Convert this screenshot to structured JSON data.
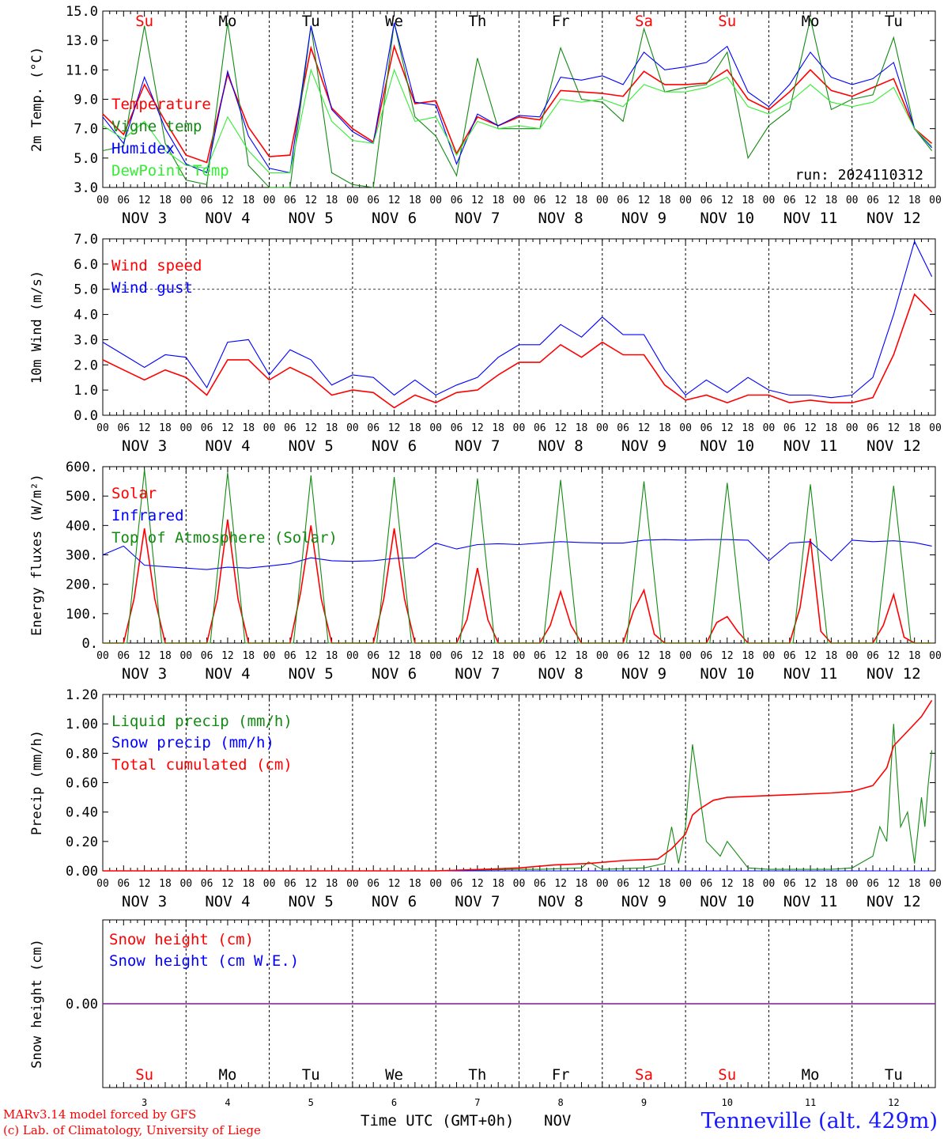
{
  "run_label": "run: 2024110312",
  "station": "Tenneville (alt. 429m)",
  "credit_line1": "MARv3.14 model forced by GFS",
  "credit_line2": "(c) Lab. of Climatology, University of Liege",
  "time_axis_label": "Time UTC (GMT+0h)",
  "month_label": "NOV",
  "day_numbers": [
    "3",
    "4",
    "5",
    "6",
    "7",
    "8",
    "9",
    "10",
    "11",
    "12"
  ],
  "weekdays": [
    "Su",
    "Mo",
    "Tu",
    "We",
    "Th",
    "Fr",
    "Sa",
    "Su",
    "Mo",
    "Tu"
  ],
  "weekday_colors": [
    "#ff0000",
    "#000000",
    "#000000",
    "#000000",
    "#000000",
    "#000000",
    "#ff0000",
    "#ff0000",
    "#000000",
    "#000000"
  ],
  "date_labels": [
    "NOV  3",
    "NOV  4",
    "NOV  5",
    "NOV  6",
    "NOV  7",
    "NOV  8",
    "NOV  9",
    "NOV 10",
    "NOV 11",
    "NOV 12"
  ],
  "hour_ticks": [
    "00",
    "06",
    "12",
    "18"
  ],
  "colors": {
    "red": "#ff0000",
    "green": "#138a13",
    "blue": "#0000ff",
    "lightgreen": "#33ee33",
    "purple": "#7a1a9a"
  },
  "chart_data": [
    {
      "type": "line",
      "ylabel": "2m Temp. (°C)",
      "ylim": [
        3.0,
        15.0
      ],
      "yticks": [
        "3.0",
        "5.0",
        "7.0",
        "9.0",
        "11.0",
        "13.0",
        "15.0"
      ],
      "x_unit": "hours since 2024-11-03 00 UTC",
      "series": [
        {
          "name": "Temperature",
          "color": "#ff0000",
          "x": [
            0,
            6,
            12,
            18,
            24,
            30,
            36,
            42,
            48,
            54,
            60,
            66,
            72,
            78,
            84,
            90,
            96,
            102,
            108,
            114,
            120,
            126,
            132,
            138,
            144,
            150,
            156,
            162,
            168,
            174,
            180,
            186,
            192,
            198,
            204,
            210,
            216,
            222,
            228,
            234,
            239
          ],
          "y": [
            8.0,
            6.6,
            10.0,
            7.5,
            5.2,
            4.7,
            10.7,
            7.1,
            5.1,
            5.2,
            12.5,
            8.4,
            7.0,
            6.1,
            12.6,
            8.7,
            8.9,
            5.3,
            7.8,
            7.2,
            7.8,
            7.6,
            9.6,
            9.5,
            9.4,
            9.2,
            10.9,
            10.0,
            10.0,
            10.1,
            11.0,
            9.0,
            8.3,
            9.5,
            11.0,
            9.6,
            9.2,
            9.8,
            10.4,
            7.0,
            6.0
          ]
        },
        {
          "name": "Vigne temp",
          "color": "#138a13",
          "x": [
            0,
            6,
            12,
            18,
            24,
            30,
            36,
            42,
            48,
            54,
            60,
            66,
            72,
            78,
            84,
            90,
            96,
            102,
            108,
            114,
            120,
            126,
            132,
            138,
            144,
            150,
            156,
            162,
            168,
            174,
            180,
            186,
            192,
            198,
            204,
            210,
            216,
            222,
            228,
            234,
            239
          ],
          "y": [
            5.5,
            5.8,
            14.0,
            6.0,
            3.5,
            3.2,
            14.2,
            4.5,
            2.8,
            2.8,
            14.0,
            4.0,
            3.2,
            3.0,
            14.2,
            7.8,
            6.5,
            3.8,
            11.8,
            7.0,
            7.0,
            7.0,
            12.5,
            9.0,
            8.8,
            7.5,
            13.8,
            9.5,
            9.8,
            10.0,
            12.2,
            5.0,
            7.2,
            8.3,
            14.5,
            8.3,
            9.0,
            9.3,
            13.2,
            7.0,
            5.5
          ]
        },
        {
          "name": "Humidex",
          "color": "#0000ff",
          "x": [
            0,
            6,
            12,
            18,
            24,
            30,
            36,
            42,
            48,
            54,
            60,
            66,
            72,
            78,
            84,
            90,
            96,
            102,
            108,
            114,
            120,
            126,
            132,
            138,
            144,
            150,
            156,
            162,
            168,
            174,
            180,
            186,
            192,
            198,
            204,
            210,
            216,
            222,
            228,
            234,
            239
          ],
          "y": [
            7.8,
            6.0,
            10.5,
            7.0,
            4.6,
            4.0,
            10.9,
            6.5,
            4.3,
            4.0,
            14.0,
            8.3,
            6.8,
            6.0,
            14.2,
            8.8,
            8.6,
            4.6,
            8.0,
            7.2,
            7.9,
            7.8,
            10.5,
            10.3,
            10.6,
            10.0,
            12.2,
            11.0,
            11.2,
            11.5,
            12.6,
            9.5,
            8.5,
            10.0,
            12.2,
            10.5,
            10.0,
            10.4,
            11.5,
            7.0,
            5.7
          ]
        },
        {
          "name": "DewPoint Temp",
          "color": "#33ee33",
          "x": [
            0,
            6,
            12,
            18,
            24,
            30,
            36,
            42,
            48,
            54,
            60,
            66,
            72,
            78,
            84,
            90,
            96,
            102,
            108,
            114,
            120,
            126,
            132,
            138,
            144,
            150,
            156,
            162,
            168,
            174,
            180,
            186,
            192,
            198,
            204,
            210,
            216,
            222,
            228,
            234,
            239
          ],
          "y": [
            7.2,
            6.3,
            7.5,
            5.5,
            4.5,
            4.3,
            7.8,
            5.5,
            4.0,
            4.0,
            11.0,
            7.5,
            6.2,
            6.0,
            11.0,
            7.5,
            7.8,
            5.2,
            7.5,
            7.0,
            7.2,
            7.0,
            9.0,
            8.8,
            9.0,
            8.5,
            10.0,
            9.5,
            9.5,
            9.8,
            10.5,
            8.5,
            8.0,
            8.8,
            10.0,
            8.8,
            8.5,
            8.8,
            9.8,
            7.0,
            5.8
          ]
        }
      ]
    },
    {
      "type": "line",
      "ylabel": "10m Wind (m/s)",
      "ylim": [
        0.0,
        7.0
      ],
      "yticks": [
        "0.0",
        "1.0",
        "2.0",
        "3.0",
        "4.0",
        "5.0",
        "6.0",
        "7.0"
      ],
      "reference_line": 5.0,
      "series": [
        {
          "name": "Wind speed",
          "color": "#ff0000",
          "x": [
            0,
            6,
            12,
            18,
            24,
            30,
            36,
            42,
            48,
            54,
            60,
            66,
            72,
            78,
            84,
            90,
            96,
            102,
            108,
            114,
            120,
            126,
            132,
            138,
            144,
            150,
            156,
            162,
            168,
            174,
            180,
            186,
            192,
            198,
            204,
            210,
            216,
            222,
            228,
            234,
            239
          ],
          "y": [
            2.2,
            1.8,
            1.4,
            1.8,
            1.5,
            0.8,
            2.2,
            2.2,
            1.4,
            1.9,
            1.5,
            0.8,
            1.0,
            0.9,
            0.3,
            0.8,
            0.5,
            0.9,
            1.0,
            1.6,
            2.1,
            2.1,
            2.8,
            2.3,
            2.9,
            2.4,
            2.4,
            1.2,
            0.6,
            0.8,
            0.5,
            0.8,
            0.8,
            0.5,
            0.6,
            0.5,
            0.5,
            0.7,
            2.4,
            4.8,
            4.1
          ]
        },
        {
          "name": "Wind gust",
          "color": "#0000ff",
          "x": [
            0,
            6,
            12,
            18,
            24,
            30,
            36,
            42,
            48,
            54,
            60,
            66,
            72,
            78,
            84,
            90,
            96,
            102,
            108,
            114,
            120,
            126,
            132,
            138,
            144,
            150,
            156,
            162,
            168,
            174,
            180,
            186,
            192,
            198,
            204,
            210,
            216,
            222,
            228,
            234,
            239
          ],
          "y": [
            2.9,
            2.4,
            1.9,
            2.4,
            2.3,
            1.1,
            2.9,
            3.0,
            1.6,
            2.6,
            2.2,
            1.2,
            1.6,
            1.5,
            0.8,
            1.4,
            0.8,
            1.2,
            1.5,
            2.3,
            2.8,
            2.8,
            3.6,
            3.1,
            3.9,
            3.2,
            3.2,
            1.8,
            0.8,
            1.4,
            0.9,
            1.5,
            1.0,
            0.8,
            0.8,
            0.7,
            0.8,
            1.5,
            4.0,
            6.9,
            5.5
          ]
        }
      ]
    },
    {
      "type": "line",
      "ylabel": "Energy fluxes (W/m²)",
      "ylim": [
        0,
        600
      ],
      "yticks": [
        "0.",
        "100.",
        "200.",
        "300.",
        "400.",
        "500.",
        "600."
      ],
      "series": [
        {
          "name": "Solar",
          "color": "#ff0000",
          "x": [
            0,
            6,
            9,
            12,
            15,
            18,
            24,
            30,
            33,
            36,
            39,
            42,
            48,
            54,
            57,
            60,
            63,
            66,
            72,
            78,
            81,
            84,
            87,
            90,
            96,
            102,
            105,
            108,
            111,
            114,
            120,
            126,
            129,
            132,
            135,
            138,
            144,
            150,
            153,
            156,
            159,
            162,
            168,
            174,
            177,
            180,
            183,
            186,
            192,
            198,
            201,
            204,
            207,
            210,
            216,
            222,
            225,
            228,
            231,
            234,
            239
          ],
          "y": [
            0,
            0,
            150,
            390,
            150,
            0,
            0,
            0,
            150,
            420,
            150,
            0,
            0,
            0,
            170,
            400,
            150,
            0,
            0,
            0,
            150,
            390,
            150,
            0,
            0,
            0,
            80,
            255,
            80,
            0,
            0,
            0,
            60,
            175,
            60,
            0,
            0,
            0,
            110,
            180,
            30,
            0,
            0,
            0,
            70,
            90,
            40,
            0,
            0,
            0,
            120,
            355,
            40,
            0,
            0,
            0,
            60,
            165,
            20,
            0,
            0
          ]
        },
        {
          "name": "Infrared",
          "color": "#0000ff",
          "x": [
            0,
            6,
            12,
            18,
            24,
            30,
            36,
            42,
            48,
            54,
            60,
            66,
            72,
            78,
            84,
            90,
            96,
            102,
            108,
            114,
            120,
            126,
            132,
            138,
            144,
            150,
            156,
            162,
            168,
            174,
            180,
            186,
            192,
            198,
            204,
            210,
            216,
            222,
            228,
            234,
            239
          ],
          "y": [
            300,
            330,
            265,
            260,
            255,
            250,
            258,
            255,
            262,
            270,
            290,
            280,
            278,
            280,
            288,
            290,
            340,
            320,
            335,
            338,
            335,
            340,
            345,
            342,
            340,
            340,
            350,
            352,
            350,
            352,
            352,
            350,
            280,
            340,
            345,
            280,
            350,
            345,
            348,
            342,
            330
          ]
        },
        {
          "name": "Top of Atmosphere (Solar)",
          "color": "#138a13",
          "x": [
            0,
            7,
            12,
            17,
            24,
            31,
            36,
            41,
            48,
            55,
            60,
            65,
            72,
            79,
            84,
            89,
            96,
            103,
            108,
            113,
            120,
            127,
            132,
            137,
            144,
            151,
            156,
            161,
            168,
            175,
            180,
            185,
            192,
            199,
            204,
            209,
            216,
            223,
            228,
            233,
            239
          ],
          "y": [
            0,
            0,
            590,
            0,
            0,
            0,
            580,
            0,
            0,
            0,
            570,
            0,
            0,
            0,
            565,
            0,
            0,
            0,
            560,
            0,
            0,
            0,
            555,
            0,
            0,
            0,
            550,
            0,
            0,
            0,
            545,
            0,
            0,
            0,
            540,
            0,
            0,
            0,
            535,
            0,
            0
          ]
        }
      ]
    },
    {
      "type": "line",
      "ylabel": "Precip (mm/h)",
      "ylim": [
        0.0,
        1.2
      ],
      "yticks": [
        "0.00",
        "0.20",
        "0.40",
        "0.60",
        "0.80",
        "1.00",
        "1.20"
      ],
      "series": [
        {
          "name": "Liquid precip (mm/h)",
          "color": "#138a13",
          "x": [
            0,
            96,
            120,
            126,
            138,
            140,
            144,
            156,
            162,
            164,
            166,
            168,
            170,
            174,
            178,
            180,
            186,
            192,
            210,
            216,
            222,
            224,
            226,
            228,
            230,
            232,
            234,
            236,
            237,
            238,
            239
          ],
          "y": [
            0,
            0,
            0.01,
            0.01,
            0.02,
            0.06,
            0.01,
            0.02,
            0.05,
            0.3,
            0.05,
            0.3,
            0.86,
            0.2,
            0.1,
            0.2,
            0.02,
            0.01,
            0.01,
            0.02,
            0.1,
            0.3,
            0.2,
            1.0,
            0.3,
            0.4,
            0.05,
            0.5,
            0.3,
            0.6,
            0.82
          ]
        },
        {
          "name": "Snow precip (mm/h)",
          "color": "#0000ff",
          "x": [
            0,
            239
          ],
          "y": [
            0,
            0
          ]
        },
        {
          "name": "Total cumulated (cm)",
          "color": "#ff0000",
          "x": [
            0,
            96,
            110,
            120,
            130,
            140,
            150,
            160,
            164,
            168,
            170,
            172,
            176,
            180,
            190,
            200,
            210,
            216,
            222,
            226,
            228,
            232,
            236,
            239
          ],
          "y": [
            0,
            0,
            0.01,
            0.02,
            0.04,
            0.05,
            0.07,
            0.08,
            0.15,
            0.25,
            0.38,
            0.42,
            0.48,
            0.5,
            0.51,
            0.52,
            0.53,
            0.54,
            0.58,
            0.7,
            0.85,
            0.95,
            1.05,
            1.16
          ]
        }
      ]
    },
    {
      "type": "line",
      "ylabel": "Snow height (cm)",
      "yticks": [
        "0.00"
      ],
      "series": [
        {
          "name": "Snow height (cm)",
          "color": "#ff0000",
          "x": [
            0,
            239
          ],
          "y": [
            0,
            0
          ]
        },
        {
          "name": "Snow height (cm W.E.)",
          "color": "#0000ff",
          "x": [
            0,
            239
          ],
          "y": [
            0,
            0
          ]
        }
      ]
    }
  ]
}
